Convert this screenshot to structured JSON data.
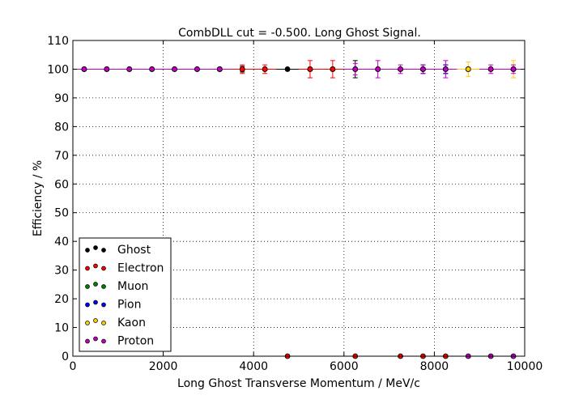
{
  "chart_data": {
    "type": "scatter",
    "title": "CombDLL cut = -0.500. Long Ghost Signal.",
    "xlabel": "Long Ghost Transverse Momentum / MeV/c",
    "ylabel": "Efficiency / %",
    "xlim": [
      0,
      10000
    ],
    "ylim": [
      0,
      110
    ],
    "xticks": [
      0,
      2000,
      4000,
      6000,
      8000,
      10000
    ],
    "yticks": [
      0,
      10,
      20,
      30,
      40,
      50,
      60,
      70,
      80,
      90,
      100,
      110
    ],
    "grid": true,
    "legend_position": "lower-left",
    "series": [
      {
        "name": "Ghost",
        "color": "#000000",
        "points": [
          [
            250,
            100,
            0,
            0
          ],
          [
            750,
            100,
            0,
            0
          ],
          [
            1250,
            100,
            0,
            0
          ],
          [
            1750,
            100,
            0,
            0
          ],
          [
            2250,
            100,
            0,
            0
          ],
          [
            2750,
            100,
            0,
            0
          ],
          [
            3250,
            100,
            0,
            0
          ],
          [
            3750,
            100,
            1,
            1
          ],
          [
            4250,
            100,
            0,
            0
          ],
          [
            4750,
            100,
            0,
            0
          ],
          [
            5250,
            100,
            0,
            0
          ],
          [
            5750,
            100,
            0,
            0
          ],
          [
            6250,
            100,
            3,
            3
          ],
          [
            6750,
            100,
            0,
            0
          ],
          [
            7250,
            100,
            0,
            0
          ],
          [
            7750,
            100,
            1.5,
            1.5
          ],
          [
            8250,
            100,
            1.5,
            1.5
          ],
          [
            8750,
            100,
            0,
            0
          ],
          [
            9250,
            100,
            0,
            0
          ],
          [
            9750,
            100,
            0,
            0
          ]
        ]
      },
      {
        "name": "Electron",
        "color": "#ff0000",
        "points": [
          [
            3250,
            100,
            0.5,
            0.5
          ],
          [
            3750,
            100,
            1.5,
            1.5
          ],
          [
            4250,
            100,
            1.5,
            1.5
          ],
          [
            5250,
            100,
            3,
            3
          ],
          [
            5750,
            100,
            3,
            3
          ],
          [
            4750,
            0,
            0,
            0
          ],
          [
            6250,
            0,
            0,
            0
          ],
          [
            7250,
            0,
            0,
            0
          ],
          [
            7750,
            0,
            0,
            0
          ],
          [
            8250,
            0,
            0,
            0
          ]
        ]
      },
      {
        "name": "Muon",
        "color": "#008000",
        "points": []
      },
      {
        "name": "Pion",
        "color": "#0000ff",
        "points": [
          [
            7750,
            100,
            1.5,
            1.5
          ],
          [
            8250,
            100,
            1.5,
            1.5
          ]
        ]
      },
      {
        "name": "Kaon",
        "color": "#ffcc00",
        "points": [
          [
            8750,
            100,
            2.5,
            2.5
          ],
          [
            9750,
            100,
            3,
            3
          ]
        ]
      },
      {
        "name": "Proton",
        "color": "#bf00bf",
        "points": [
          [
            250,
            100,
            0,
            0
          ],
          [
            750,
            100,
            0,
            0
          ],
          [
            1250,
            100,
            0,
            0
          ],
          [
            1750,
            100,
            0,
            0
          ],
          [
            2250,
            100,
            0,
            0
          ],
          [
            2750,
            100,
            0,
            0
          ],
          [
            3250,
            100,
            0,
            0
          ],
          [
            6250,
            100,
            2,
            2
          ],
          [
            6750,
            100,
            3,
            3
          ],
          [
            7250,
            100,
            1.5,
            1.5
          ],
          [
            7750,
            100,
            1.5,
            1.5
          ],
          [
            8250,
            100,
            3,
            3
          ],
          [
            9250,
            100,
            1.5,
            1.5
          ],
          [
            9750,
            100,
            1.5,
            1.5
          ],
          [
            8750,
            0,
            0,
            0
          ],
          [
            9250,
            0,
            0,
            0
          ],
          [
            9750,
            0,
            0,
            0
          ]
        ]
      }
    ]
  }
}
